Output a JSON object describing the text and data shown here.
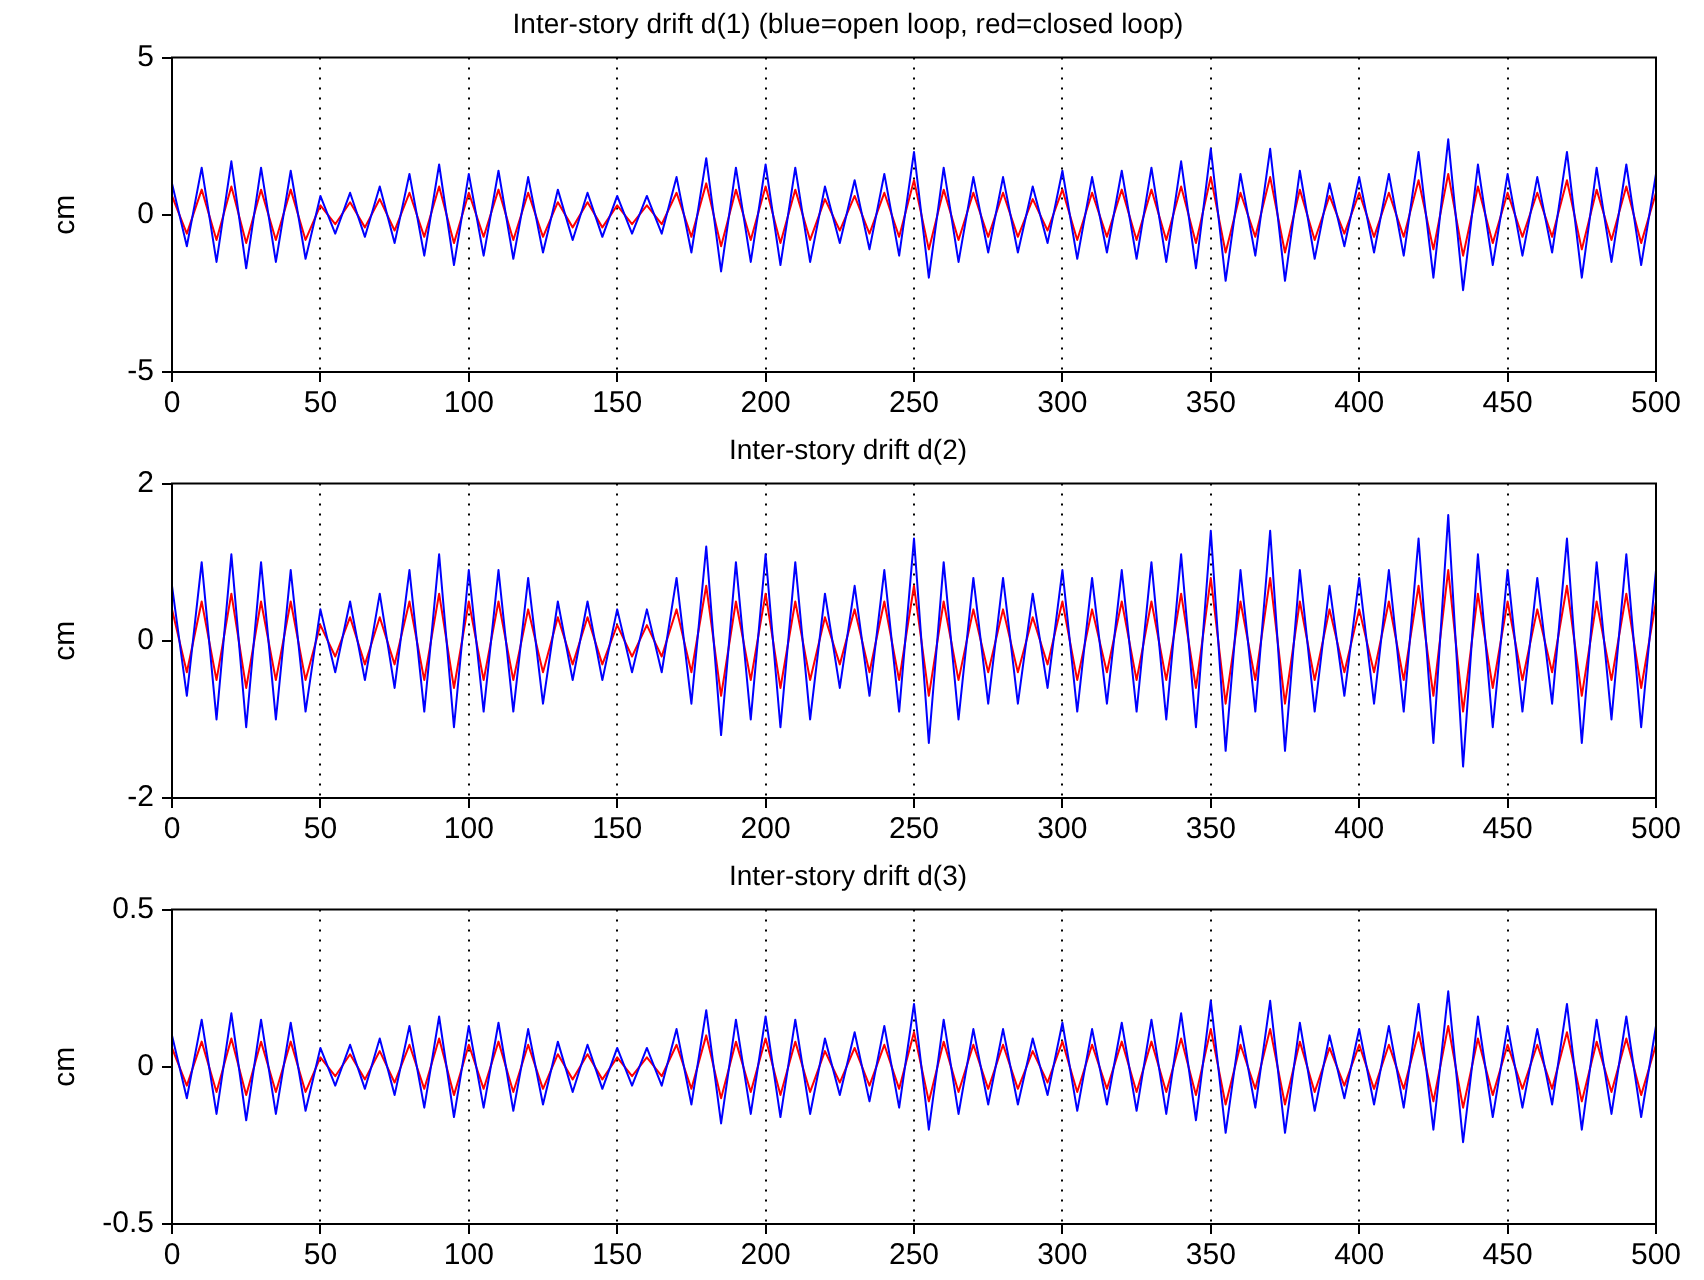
{
  "chart_data": [
    {
      "type": "line",
      "title": "Inter-story drift d(1) (blue=open loop, red=closed loop)",
      "ylabel": "cm",
      "x": [
        0,
        5,
        10,
        15,
        20,
        25,
        30,
        35,
        40,
        45,
        50,
        55,
        60,
        65,
        70,
        75,
        80,
        85,
        90,
        95,
        100,
        105,
        110,
        115,
        120,
        125,
        130,
        135,
        140,
        145,
        150,
        155,
        160,
        165,
        170,
        175,
        180,
        185,
        190,
        195,
        200,
        205,
        210,
        215,
        220,
        225,
        230,
        235,
        240,
        245,
        250,
        255,
        260,
        265,
        270,
        275,
        280,
        285,
        290,
        295,
        300,
        305,
        310,
        315,
        320,
        325,
        330,
        335,
        340,
        345,
        350,
        355,
        360,
        365,
        370,
        375,
        380,
        385,
        390,
        395,
        400,
        405,
        410,
        415,
        420,
        425,
        430,
        435,
        440,
        445,
        450,
        455,
        460,
        465,
        470,
        475,
        480,
        485,
        490,
        495,
        500
      ],
      "xlim": [
        0,
        500
      ],
      "xticks": [
        0,
        50,
        100,
        150,
        200,
        250,
        300,
        350,
        400,
        450,
        500
      ],
      "ylim": [
        -5,
        5
      ],
      "yticks": [
        -5,
        0,
        5
      ],
      "grid": "x",
      "legend": false,
      "line_style": "solid",
      "marker": "none",
      "series": [
        {
          "color": "#0000ff",
          "values": [
            1.0,
            -1.0,
            1.5,
            -1.5,
            1.7,
            -1.7,
            1.5,
            -1.5,
            1.4,
            -1.4,
            0.6,
            -0.6,
            0.7,
            -0.7,
            0.9,
            -0.9,
            1.3,
            -1.3,
            1.6,
            -1.6,
            1.3,
            -1.3,
            1.4,
            -1.4,
            1.2,
            -1.2,
            0.8,
            -0.8,
            0.7,
            -0.7,
            0.6,
            -0.6,
            0.6,
            -0.6,
            1.2,
            -1.2,
            1.8,
            -1.8,
            1.5,
            -1.5,
            1.6,
            -1.6,
            1.5,
            -1.5,
            0.9,
            -0.9,
            1.1,
            -1.1,
            1.3,
            -1.3,
            2.0,
            -2.0,
            1.5,
            -1.5,
            1.2,
            -1.2,
            1.2,
            -1.2,
            0.9,
            -0.9,
            1.4,
            -1.4,
            1.2,
            -1.2,
            1.4,
            -1.4,
            1.5,
            -1.5,
            1.7,
            -1.7,
            2.1,
            -2.1,
            1.3,
            -1.3,
            2.1,
            -2.1,
            1.4,
            -1.4,
            1.0,
            -1.0,
            1.2,
            -1.2,
            1.3,
            -1.3,
            2.0,
            -2.0,
            2.4,
            -2.4,
            1.6,
            -1.6,
            1.3,
            -1.3,
            1.2,
            -1.2,
            2.0,
            -2.0,
            1.5,
            -1.5,
            1.6,
            -1.6,
            1.3
          ]
        },
        {
          "color": "#ff0000",
          "values": [
            0.6,
            -0.6,
            0.8,
            -0.8,
            0.9,
            -0.9,
            0.8,
            -0.8,
            0.8,
            -0.8,
            0.3,
            -0.3,
            0.4,
            -0.4,
            0.5,
            -0.5,
            0.7,
            -0.7,
            0.9,
            -0.9,
            0.7,
            -0.7,
            0.8,
            -0.8,
            0.7,
            -0.7,
            0.4,
            -0.4,
            0.4,
            -0.4,
            0.3,
            -0.3,
            0.3,
            -0.3,
            0.7,
            -0.7,
            1.0,
            -1.0,
            0.8,
            -0.8,
            0.9,
            -0.9,
            0.8,
            -0.8,
            0.5,
            -0.5,
            0.6,
            -0.6,
            0.7,
            -0.7,
            1.1,
            -1.1,
            0.8,
            -0.8,
            0.7,
            -0.7,
            0.7,
            -0.7,
            0.5,
            -0.5,
            0.8,
            -0.8,
            0.7,
            -0.7,
            0.8,
            -0.8,
            0.8,
            -0.8,
            0.9,
            -0.9,
            1.2,
            -1.2,
            0.7,
            -0.7,
            1.2,
            -1.2,
            0.8,
            -0.8,
            0.6,
            -0.6,
            0.7,
            -0.7,
            0.7,
            -0.7,
            1.1,
            -1.1,
            1.3,
            -1.3,
            0.9,
            -0.9,
            0.7,
            -0.7,
            0.7,
            -0.7,
            1.1,
            -1.1,
            0.8,
            -0.8,
            0.9,
            -0.9,
            0.7
          ]
        }
      ]
    },
    {
      "type": "line",
      "title": "Inter-story drift d(2)",
      "ylabel": "cm",
      "x": [
        0,
        5,
        10,
        15,
        20,
        25,
        30,
        35,
        40,
        45,
        50,
        55,
        60,
        65,
        70,
        75,
        80,
        85,
        90,
        95,
        100,
        105,
        110,
        115,
        120,
        125,
        130,
        135,
        140,
        145,
        150,
        155,
        160,
        165,
        170,
        175,
        180,
        185,
        190,
        195,
        200,
        205,
        210,
        215,
        220,
        225,
        230,
        235,
        240,
        245,
        250,
        255,
        260,
        265,
        270,
        275,
        280,
        285,
        290,
        295,
        300,
        305,
        310,
        315,
        320,
        325,
        330,
        335,
        340,
        345,
        350,
        355,
        360,
        365,
        370,
        375,
        380,
        385,
        390,
        395,
        400,
        405,
        410,
        415,
        420,
        425,
        430,
        435,
        440,
        445,
        450,
        455,
        460,
        465,
        470,
        475,
        480,
        485,
        490,
        495,
        500
      ],
      "xlim": [
        0,
        500
      ],
      "xticks": [
        0,
        50,
        100,
        150,
        200,
        250,
        300,
        350,
        400,
        450,
        500
      ],
      "ylim": [
        -2,
        2
      ],
      "yticks": [
        -2,
        0,
        2
      ],
      "grid": "x",
      "legend": false,
      "line_style": "solid",
      "marker": "none",
      "series": [
        {
          "color": "#0000ff",
          "values": [
            0.7,
            -0.7,
            1.0,
            -1.0,
            1.1,
            -1.1,
            1.0,
            -1.0,
            0.9,
            -0.9,
            0.4,
            -0.4,
            0.5,
            -0.5,
            0.6,
            -0.6,
            0.9,
            -0.9,
            1.1,
            -1.1,
            0.9,
            -0.9,
            0.9,
            -0.9,
            0.8,
            -0.8,
            0.5,
            -0.5,
            0.5,
            -0.5,
            0.4,
            -0.4,
            0.4,
            -0.4,
            0.8,
            -0.8,
            1.2,
            -1.2,
            1.0,
            -1.0,
            1.1,
            -1.1,
            1.0,
            -1.0,
            0.6,
            -0.6,
            0.7,
            -0.7,
            0.9,
            -0.9,
            1.3,
            -1.3,
            1.0,
            -1.0,
            0.8,
            -0.8,
            0.8,
            -0.8,
            0.6,
            -0.6,
            0.9,
            -0.9,
            0.8,
            -0.8,
            0.9,
            -0.9,
            1.0,
            -1.0,
            1.1,
            -1.1,
            1.4,
            -1.4,
            0.9,
            -0.9,
            1.4,
            -1.4,
            0.9,
            -0.9,
            0.7,
            -0.7,
            0.8,
            -0.8,
            0.9,
            -0.9,
            1.3,
            -1.3,
            1.6,
            -1.6,
            1.1,
            -1.1,
            0.9,
            -0.9,
            0.8,
            -0.8,
            1.3,
            -1.3,
            1.0,
            -1.0,
            1.1,
            -1.1,
            0.9
          ]
        },
        {
          "color": "#ff0000",
          "values": [
            0.4,
            -0.4,
            0.5,
            -0.5,
            0.6,
            -0.6,
            0.5,
            -0.5,
            0.5,
            -0.5,
            0.2,
            -0.2,
            0.3,
            -0.3,
            0.3,
            -0.3,
            0.5,
            -0.5,
            0.6,
            -0.6,
            0.5,
            -0.5,
            0.5,
            -0.5,
            0.4,
            -0.4,
            0.3,
            -0.3,
            0.3,
            -0.3,
            0.2,
            -0.2,
            0.2,
            -0.2,
            0.4,
            -0.4,
            0.7,
            -0.7,
            0.5,
            -0.5,
            0.6,
            -0.6,
            0.5,
            -0.5,
            0.3,
            -0.3,
            0.4,
            -0.4,
            0.5,
            -0.5,
            0.7,
            -0.7,
            0.5,
            -0.5,
            0.4,
            -0.4,
            0.4,
            -0.4,
            0.3,
            -0.3,
            0.5,
            -0.5,
            0.4,
            -0.4,
            0.5,
            -0.5,
            0.5,
            -0.5,
            0.6,
            -0.6,
            0.8,
            -0.8,
            0.5,
            -0.5,
            0.8,
            -0.8,
            0.5,
            -0.5,
            0.4,
            -0.4,
            0.4,
            -0.4,
            0.5,
            -0.5,
            0.7,
            -0.7,
            0.9,
            -0.9,
            0.6,
            -0.6,
            0.5,
            -0.5,
            0.4,
            -0.4,
            0.7,
            -0.7,
            0.5,
            -0.5,
            0.6,
            -0.6,
            0.5
          ]
        }
      ]
    },
    {
      "type": "line",
      "title": "Inter-story drift d(3)",
      "ylabel": "cm",
      "x": [
        0,
        5,
        10,
        15,
        20,
        25,
        30,
        35,
        40,
        45,
        50,
        55,
        60,
        65,
        70,
        75,
        80,
        85,
        90,
        95,
        100,
        105,
        110,
        115,
        120,
        125,
        130,
        135,
        140,
        145,
        150,
        155,
        160,
        165,
        170,
        175,
        180,
        185,
        190,
        195,
        200,
        205,
        210,
        215,
        220,
        225,
        230,
        235,
        240,
        245,
        250,
        255,
        260,
        265,
        270,
        275,
        280,
        285,
        290,
        295,
        300,
        305,
        310,
        315,
        320,
        325,
        330,
        335,
        340,
        345,
        350,
        355,
        360,
        365,
        370,
        375,
        380,
        385,
        390,
        395,
        400,
        405,
        410,
        415,
        420,
        425,
        430,
        435,
        440,
        445,
        450,
        455,
        460,
        465,
        470,
        475,
        480,
        485,
        490,
        495,
        500
      ],
      "xlim": [
        0,
        500
      ],
      "xticks": [
        0,
        50,
        100,
        150,
        200,
        250,
        300,
        350,
        400,
        450,
        500
      ],
      "ylim": [
        -0.5,
        0.5
      ],
      "yticks": [
        -0.5,
        0,
        0.5
      ],
      "grid": "x",
      "legend": false,
      "line_style": "solid",
      "marker": "none",
      "series": [
        {
          "color": "#0000ff",
          "values": [
            0.1,
            -0.1,
            0.15,
            -0.15,
            0.17,
            -0.17,
            0.15,
            -0.15,
            0.14,
            -0.14,
            0.06,
            -0.06,
            0.07,
            -0.07,
            0.09,
            -0.09,
            0.13,
            -0.13,
            0.16,
            -0.16,
            0.13,
            -0.13,
            0.14,
            -0.14,
            0.12,
            -0.12,
            0.08,
            -0.08,
            0.07,
            -0.07,
            0.06,
            -0.06,
            0.06,
            -0.06,
            0.12,
            -0.12,
            0.18,
            -0.18,
            0.15,
            -0.15,
            0.16,
            -0.16,
            0.15,
            -0.15,
            0.09,
            -0.09,
            0.11,
            -0.11,
            0.13,
            -0.13,
            0.2,
            -0.2,
            0.15,
            -0.15,
            0.12,
            -0.12,
            0.12,
            -0.12,
            0.09,
            -0.09,
            0.14,
            -0.14,
            0.12,
            -0.12,
            0.14,
            -0.14,
            0.15,
            -0.15,
            0.17,
            -0.17,
            0.21,
            -0.21,
            0.13,
            -0.13,
            0.21,
            -0.21,
            0.14,
            -0.14,
            0.1,
            -0.1,
            0.12,
            -0.12,
            0.13,
            -0.13,
            0.2,
            -0.2,
            0.24,
            -0.24,
            0.16,
            -0.16,
            0.13,
            -0.13,
            0.12,
            -0.12,
            0.2,
            -0.2,
            0.15,
            -0.15,
            0.16,
            -0.16,
            0.13
          ]
        },
        {
          "color": "#ff0000",
          "values": [
            0.06,
            -0.06,
            0.08,
            -0.08,
            0.09,
            -0.09,
            0.08,
            -0.08,
            0.08,
            -0.08,
            0.03,
            -0.03,
            0.04,
            -0.04,
            0.05,
            -0.05,
            0.07,
            -0.07,
            0.09,
            -0.09,
            0.07,
            -0.07,
            0.08,
            -0.08,
            0.07,
            -0.07,
            0.04,
            -0.04,
            0.04,
            -0.04,
            0.03,
            -0.03,
            0.03,
            -0.03,
            0.07,
            -0.07,
            0.1,
            -0.1,
            0.08,
            -0.08,
            0.09,
            -0.09,
            0.08,
            -0.08,
            0.05,
            -0.05,
            0.06,
            -0.06,
            0.07,
            -0.07,
            0.11,
            -0.11,
            0.08,
            -0.08,
            0.07,
            -0.07,
            0.07,
            -0.07,
            0.05,
            -0.05,
            0.08,
            -0.08,
            0.07,
            -0.07,
            0.08,
            -0.08,
            0.08,
            -0.08,
            0.09,
            -0.09,
            0.12,
            -0.12,
            0.07,
            -0.07,
            0.12,
            -0.12,
            0.08,
            -0.08,
            0.06,
            -0.06,
            0.07,
            -0.07,
            0.07,
            -0.07,
            0.11,
            -0.11,
            0.13,
            -0.13,
            0.09,
            -0.09,
            0.07,
            -0.07,
            0.07,
            -0.07,
            0.11,
            -0.11,
            0.08,
            -0.08,
            0.09,
            -0.09,
            0.07
          ]
        }
      ]
    }
  ]
}
